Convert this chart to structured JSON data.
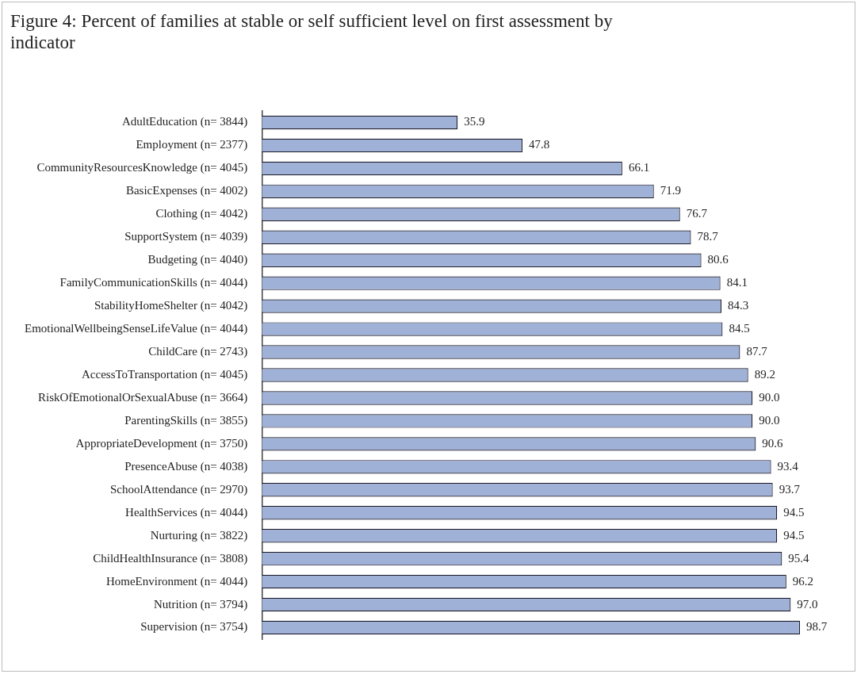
{
  "chart_data": {
    "type": "bar",
    "orientation": "horizontal",
    "title": "Figure 4: Percent of families at stable or self sufficient level on first assessment by indicator",
    "categories": [
      "AdultEducation (n= 3844)",
      "Employment (n= 2377)",
      "CommunityResourcesKnowledge (n= 4045)",
      "BasicExpenses (n= 4002)",
      "Clothing (n= 4042)",
      "SupportSystem (n= 4039)",
      "Budgeting (n= 4040)",
      "FamilyCommunicationSkills (n= 4044)",
      "StabilityHomeShelter (n= 4042)",
      "EmotionalWellbeingSenseLifeValue (n= 4044)",
      "ChildCare (n= 2743)",
      "AccessToTransportation (n= 4045)",
      "RiskOfEmotionalOrSexualAbuse (n= 3664)",
      "ParentingSkills (n= 3855)",
      "AppropriateDevelopment (n= 3750)",
      "PresenceAbuse (n= 4038)",
      "SchoolAttendance (n= 2970)",
      "HealthServices (n= 4044)",
      "Nurturing (n= 3822)",
      "ChildHealthInsurance (n= 3808)",
      "HomeEnvironment (n= 4044)",
      "Nutrition (n= 3794)",
      "Supervision (n= 3754)"
    ],
    "values": [
      35.9,
      47.8,
      66.1,
      71.9,
      76.7,
      78.7,
      80.6,
      84.1,
      84.3,
      84.5,
      87.7,
      89.2,
      90.0,
      90.0,
      90.6,
      93.4,
      93.7,
      94.5,
      94.5,
      95.4,
      96.2,
      97.0,
      98.7
    ],
    "value_labels": [
      "35.9",
      "47.8",
      "66.1",
      "71.9",
      "76.7",
      "78.7",
      "80.6",
      "84.1",
      "84.3",
      "84.5",
      "87.7",
      "89.2",
      "90.0",
      "90.0",
      "90.6",
      "93.4",
      "93.7",
      "94.5",
      "94.5",
      "95.4",
      "96.2",
      "97.0",
      "98.7"
    ],
    "color": "#9fb1d6",
    "grid": false,
    "legend": false,
    "tick_labels": "y"
  }
}
